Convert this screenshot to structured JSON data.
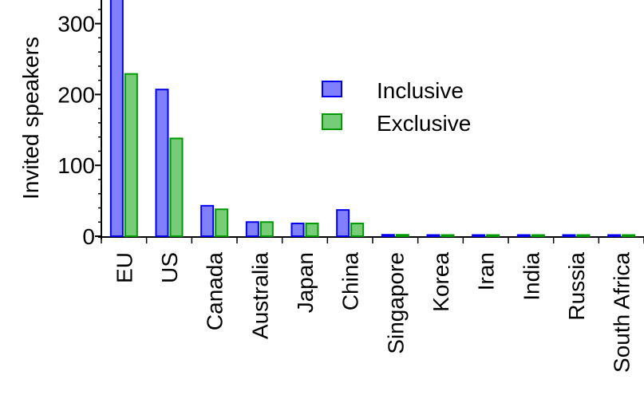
{
  "chart_data": {
    "type": "bar",
    "title": "",
    "xlabel": "",
    "ylabel": "Invited speakers",
    "ylim": [
      0,
      335
    ],
    "yticks": [
      0,
      100,
      200,
      300
    ],
    "categories": [
      "EU",
      "US",
      "Canada",
      "Australia",
      "Japan",
      "China",
      "Singapore",
      "Korea",
      "Iran",
      "India",
      "Russia",
      "South Africa"
    ],
    "series": [
      {
        "name": "Inclusive",
        "color": "#8080ff",
        "edge_color": "#0000ee",
        "values": [
          335,
          207,
          43,
          20,
          18,
          37,
          2,
          1,
          1,
          1,
          1,
          1
        ]
      },
      {
        "name": "Exclusive",
        "color": "#77cc77",
        "edge_color": "#009900",
        "values": [
          229,
          138,
          38,
          20,
          18,
          18,
          2,
          1,
          1,
          1,
          1,
          1
        ]
      }
    ],
    "legend_position": "upper-middle",
    "grid": false
  }
}
